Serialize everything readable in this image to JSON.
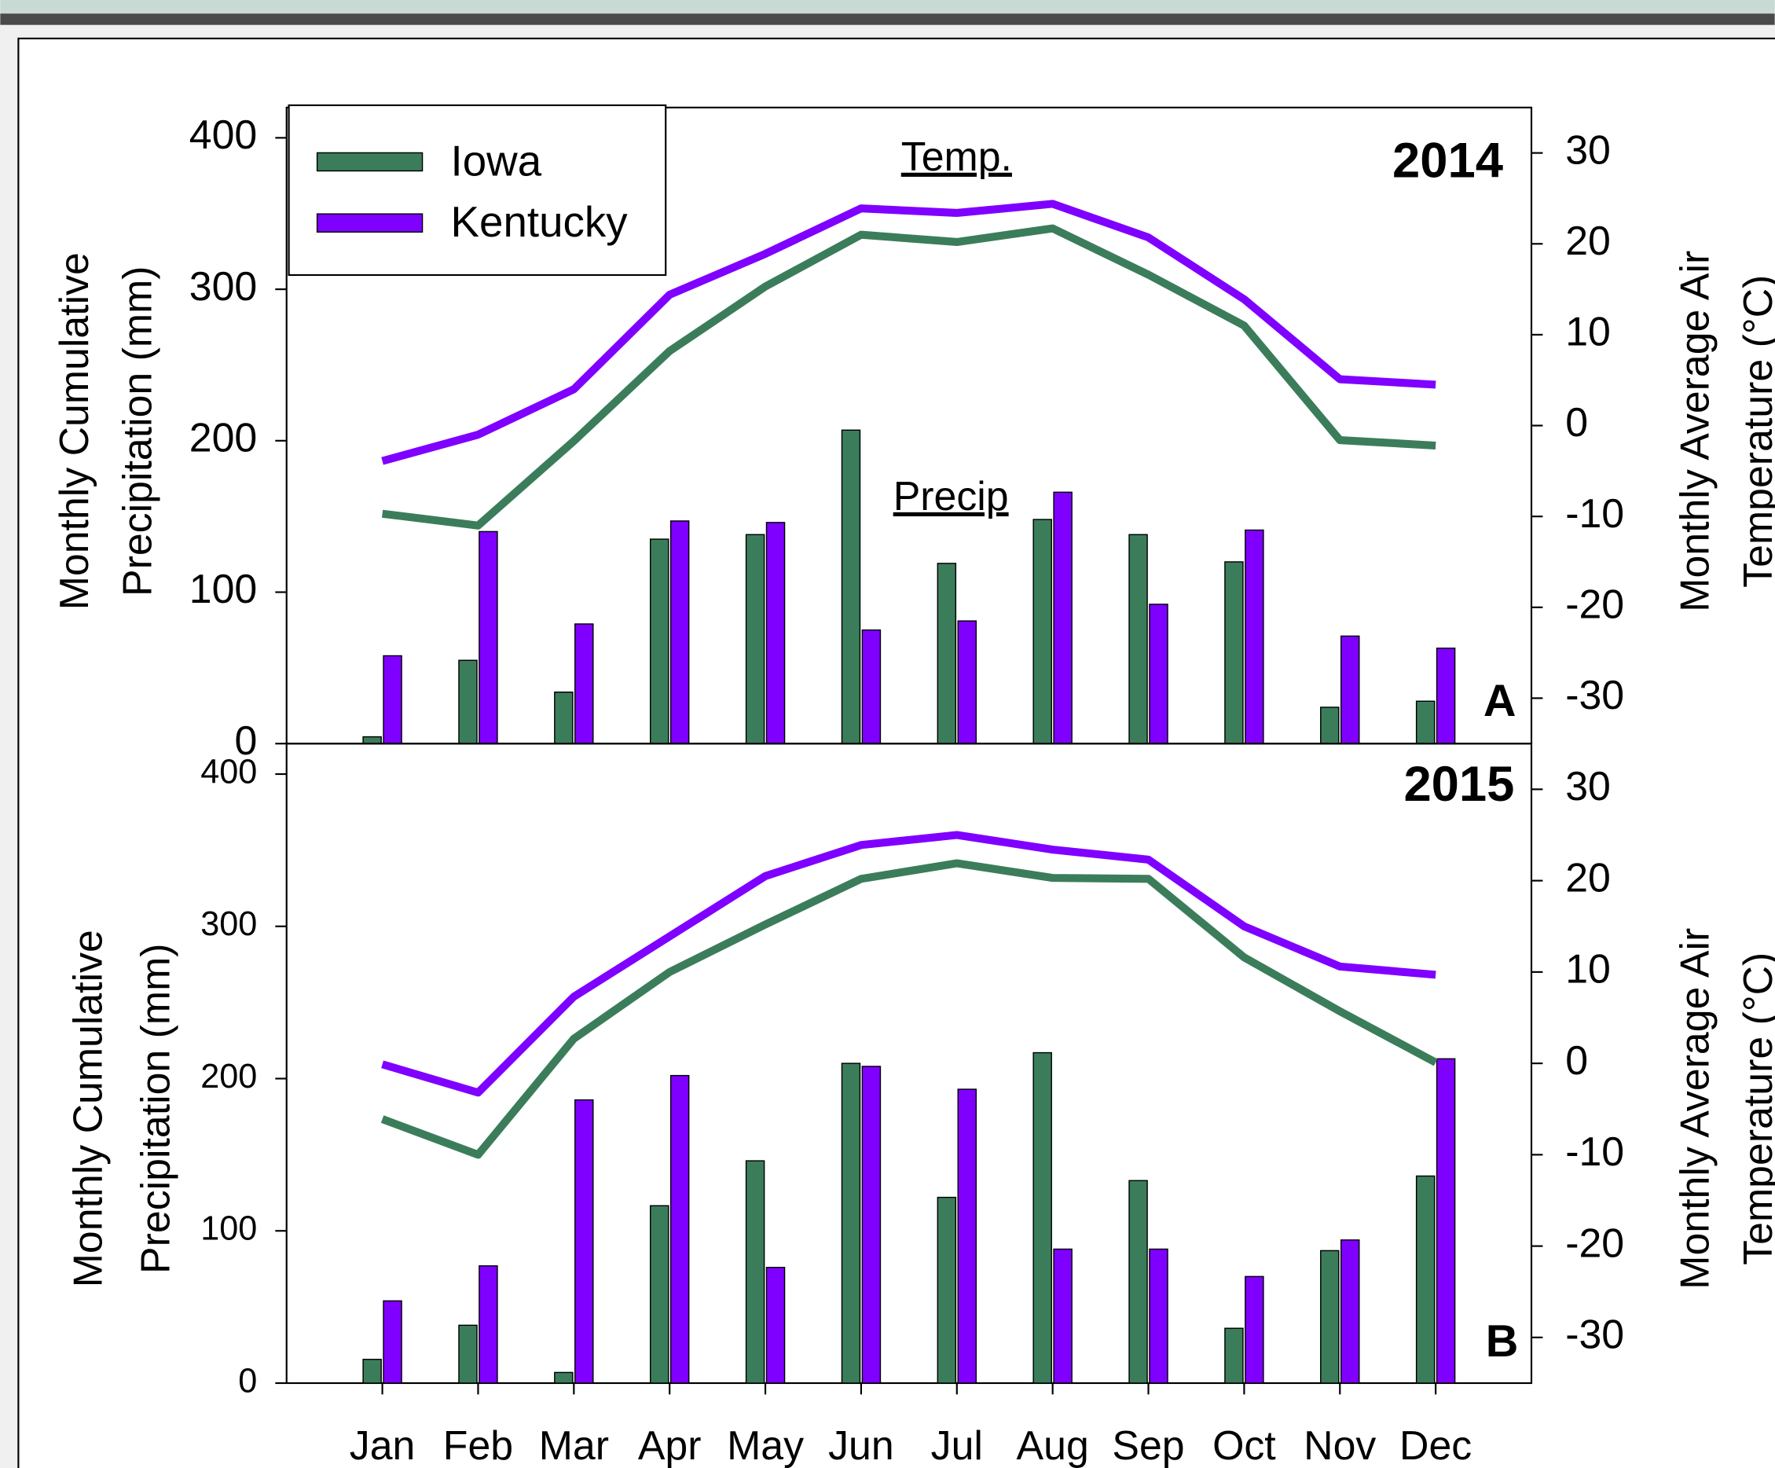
{
  "chart_data": [
    {
      "type": "bar",
      "year_label": "2014",
      "panel_label": "A",
      "annotations": [
        "Temp.",
        "Precip"
      ],
      "ylabel": [
        "Monthly Cumulative",
        "Precipitation (mm)"
      ],
      "y2label": [
        "Monthly Average Air",
        "Temperature (°C)"
      ],
      "categories": [
        null,
        null,
        null,
        null,
        null,
        null,
        null,
        null,
        null,
        null,
        null,
        null
      ],
      "ylim": [
        0,
        420
      ],
      "yticks": [
        0,
        100,
        200,
        300,
        400
      ],
      "y2lim": [
        -35,
        35
      ],
      "y2ticks": [
        -30,
        -20,
        -10,
        0,
        10,
        20,
        30
      ],
      "legend": "upper left",
      "series": [
        {
          "name": "Iowa",
          "color": "#3b7d5a",
          "values": [
            4.5,
            55,
            34,
            135,
            138,
            207,
            119,
            148,
            138,
            120,
            24,
            28
          ],
          "y2_values": [
            -9.7,
            -11,
            -1.7,
            8.2,
            15.3,
            21,
            20.2,
            21.7,
            16.6,
            11,
            -1.6,
            -2.2
          ]
        },
        {
          "name": "Kentucky",
          "color": "#7f00ff",
          "values": [
            58,
            140,
            79,
            147,
            146,
            75,
            81,
            166,
            92,
            141,
            71,
            63
          ],
          "y2_values": [
            -3.9,
            -1,
            4,
            14.4,
            18.9,
            23.9,
            23.4,
            24.4,
            20.7,
            13.9,
            5.1,
            4.5
          ]
        }
      ]
    },
    {
      "type": "bar",
      "year_label": "2015",
      "panel_label": "B",
      "ylabel": [
        "Monthly Cumulative",
        "Precipitation (mm)"
      ],
      "y2label": [
        "Monthly Average Air",
        "Temperature (°C)"
      ],
      "categories": [
        "Jan",
        "Feb",
        "Mar",
        "Apr",
        "May",
        "Jun",
        "Jul",
        "Aug",
        "Sep",
        "Oct",
        "Nov",
        "Dec"
      ],
      "ylim": [
        0,
        420
      ],
      "yticks": [
        0,
        100,
        200,
        300,
        400
      ],
      "y2lim": [
        -35,
        35
      ],
      "y2ticks": [
        -30,
        -20,
        -10,
        0,
        10,
        20,
        30
      ],
      "series": [
        {
          "color": "#3b7d5a",
          "values": [
            15.6,
            38,
            7,
            116.5,
            146,
            210,
            122,
            217,
            133,
            36,
            87,
            136
          ],
          "y2_values": [
            -6.1,
            -10,
            2.7,
            10,
            15.2,
            20.2,
            21.9,
            20.3,
            20.2,
            11.6,
            5.7,
            0.1
          ]
        },
        {
          "color": "#7f00ff",
          "values": [
            54,
            77,
            186,
            202,
            76,
            208,
            193,
            88,
            88,
            70,
            94,
            213
          ],
          "y2_values": [
            -0.1,
            -3.2,
            7.3,
            13.9,
            20.5,
            23.9,
            25,
            23.4,
            22.3,
            15,
            10.6,
            9.7
          ]
        }
      ]
    }
  ]
}
